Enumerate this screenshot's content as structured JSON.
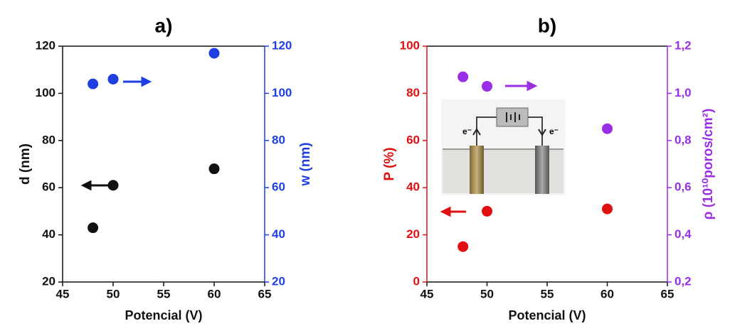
{
  "chart_data": [
    {
      "type": "scatter",
      "title": "a)",
      "xlabel": "Potencial (V)",
      "ylabel": "d (nm)",
      "y2label": "w (nm)",
      "x": [
        48,
        50,
        60
      ],
      "series": [
        {
          "color": "#111111",
          "values": [
            43,
            61,
            68
          ]
        },
        {
          "color": "#1f3fe0",
          "values": [
            104,
            106,
            117
          ],
          "axis": "y2"
        }
      ],
      "xlim": [
        45,
        65
      ],
      "xticks": [
        45,
        50,
        55,
        60,
        65
      ],
      "ylim": [
        20,
        120
      ],
      "yticks": [
        20,
        40,
        60,
        80,
        100,
        120
      ],
      "y2lim": [
        20,
        120
      ],
      "y2ticks": [
        20,
        40,
        60,
        80,
        100,
        120
      ]
    },
    {
      "type": "scatter",
      "title": "b)",
      "xlabel": "Potencial (V)",
      "ylabel": "P (%)",
      "y2label": "ρ (10¹⁰poros/cm²)",
      "x": [
        48,
        50,
        60
      ],
      "series": [
        {
          "color": "#e01010",
          "values": [
            15,
            30,
            31
          ]
        },
        {
          "color": "#9a2ee6",
          "values": [
            1.07,
            1.03,
            0.85
          ],
          "axis": "y2"
        }
      ],
      "xlim": [
        45,
        65
      ],
      "xticks": [
        45,
        50,
        55,
        60,
        65
      ],
      "ylim": [
        0,
        100
      ],
      "yticks": [
        0,
        20,
        40,
        60,
        80,
        100
      ],
      "y2lim": [
        0.2,
        1.2
      ],
      "y2ticks": [
        {
          "value": 0.2,
          "label": "0,2"
        },
        {
          "value": 0.4,
          "label": "0,4"
        },
        {
          "value": 0.6,
          "label": "0,6"
        },
        {
          "value": 0.8,
          "label": "0,8"
        },
        {
          "value": 1.0,
          "label": "1,0"
        },
        {
          "value": 1.2,
          "label": "1,2"
        }
      ],
      "annotations": [
        "e⁻",
        "e⁻"
      ]
    }
  ]
}
